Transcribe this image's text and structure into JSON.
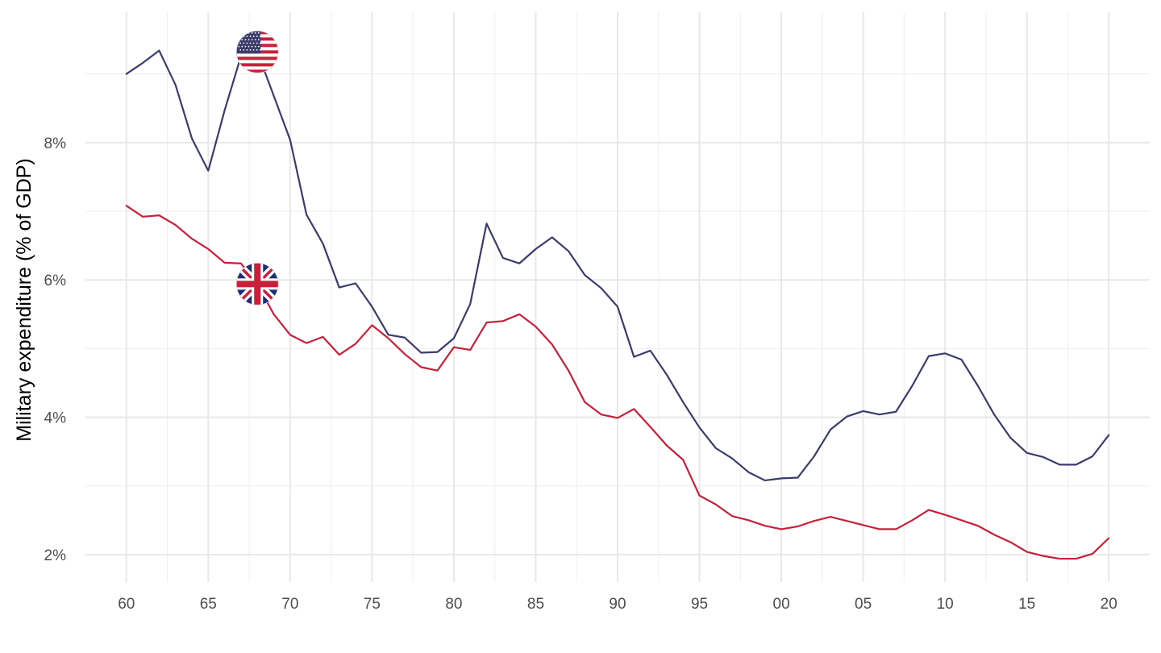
{
  "chart_data": {
    "type": "line",
    "ylabel": "Military expenditure (% of GDP)",
    "xlabel": "",
    "xlim": [
      1957.5,
      2022.5
    ],
    "ylim": [
      1.6,
      9.9
    ],
    "x_ticks": [
      1960,
      1965,
      1970,
      1975,
      1980,
      1985,
      1990,
      1995,
      2000,
      2005,
      2010,
      2015,
      2020
    ],
    "x_tick_labels": [
      "60",
      "65",
      "70",
      "75",
      "80",
      "85",
      "90",
      "95",
      "00",
      "05",
      "10",
      "15",
      "20"
    ],
    "y_ticks": [
      2,
      4,
      6,
      8
    ],
    "y_tick_labels": [
      "2%",
      "4%",
      "6%",
      "8%"
    ],
    "grid": true,
    "legend": "none",
    "x": [
      1960,
      1961,
      1962,
      1963,
      1964,
      1965,
      1966,
      1967,
      1968,
      1969,
      1970,
      1971,
      1972,
      1973,
      1974,
      1975,
      1976,
      1977,
      1978,
      1979,
      1980,
      1981,
      1982,
      1983,
      1984,
      1985,
      1986,
      1987,
      1988,
      1989,
      1990,
      1991,
      1992,
      1993,
      1994,
      1995,
      1996,
      1997,
      1998,
      1999,
      2000,
      2001,
      2002,
      2003,
      2004,
      2005,
      2006,
      2007,
      2008,
      2009,
      2010,
      2011,
      2012,
      2013,
      2014,
      2015,
      2016,
      2017,
      2018,
      2019,
      2020
    ],
    "series": [
      {
        "flag": "united-states-flag-icon",
        "color": "#3b3b6d",
        "values": [
          9.0,
          9.16,
          9.34,
          8.84,
          8.06,
          7.59,
          8.47,
          9.26,
          9.32,
          8.68,
          8.04,
          6.95,
          6.53,
          5.89,
          5.95,
          5.61,
          5.2,
          5.16,
          4.94,
          4.95,
          5.15,
          5.65,
          6.82,
          6.32,
          6.24,
          6.45,
          6.62,
          6.42,
          6.07,
          5.88,
          5.61,
          4.88,
          4.97,
          4.62,
          4.22,
          3.85,
          3.55,
          3.4,
          3.2,
          3.08,
          3.11,
          3.12,
          3.43,
          3.82,
          4.01,
          4.09,
          4.04,
          4.08,
          4.46,
          4.89,
          4.93,
          4.84,
          4.46,
          4.04,
          3.7,
          3.48,
          3.42,
          3.31,
          3.31,
          3.43,
          3.74
        ]
      },
      {
        "flag": "united-kingdom-flag-icon",
        "color": "#c8203a",
        "values": [
          7.08,
          6.92,
          6.94,
          6.8,
          6.6,
          6.45,
          6.25,
          6.24,
          5.94,
          5.5,
          5.2,
          5.08,
          5.17,
          4.91,
          5.07,
          5.34,
          5.15,
          4.92,
          4.73,
          4.68,
          5.02,
          4.98,
          5.38,
          5.4,
          5.5,
          5.32,
          5.06,
          4.68,
          4.22,
          4.04,
          3.99,
          4.12,
          3.86,
          3.59,
          3.38,
          2.86,
          2.73,
          2.56,
          2.5,
          2.42,
          2.37,
          2.41,
          2.49,
          2.55,
          2.49,
          2.43,
          2.37,
          2.37,
          2.5,
          2.65,
          2.58,
          2.5,
          2.42,
          2.29,
          2.18,
          2.04,
          1.98,
          1.94,
          1.94,
          2.01,
          2.24
        ]
      }
    ],
    "flag_markers": [
      {
        "series": 0,
        "x": 1968
      },
      {
        "series": 1,
        "x": 1968
      }
    ]
  }
}
